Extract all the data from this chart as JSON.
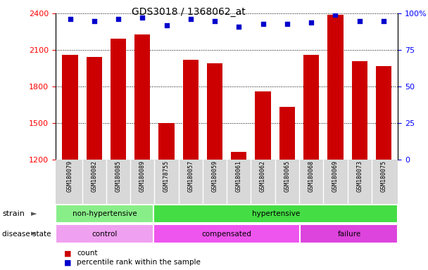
{
  "title": "GDS3018 / 1368062_at",
  "samples": [
    "GSM180079",
    "GSM180082",
    "GSM180085",
    "GSM180089",
    "GSM178755",
    "GSM180057",
    "GSM180059",
    "GSM180061",
    "GSM180062",
    "GSM180065",
    "GSM180068",
    "GSM180069",
    "GSM180073",
    "GSM180075"
  ],
  "counts": [
    2060,
    2040,
    2190,
    2230,
    1500,
    2020,
    1990,
    1260,
    1760,
    1630,
    2060,
    2390,
    2010,
    1970
  ],
  "percentiles": [
    96,
    95,
    96,
    97,
    92,
    96,
    95,
    91,
    93,
    93,
    94,
    99,
    95,
    95
  ],
  "ylim_left": [
    1200,
    2400
  ],
  "yticks_left": [
    1200,
    1500,
    1800,
    2100,
    2400
  ],
  "yticks_right": [
    0,
    25,
    50,
    75,
    100
  ],
  "bar_color": "#cc0000",
  "dot_color": "#0000cc",
  "strain_groups": [
    {
      "text": "non-hypertensive",
      "start": 0,
      "end": 3,
      "color": "#88ee88"
    },
    {
      "text": "hypertensive",
      "start": 4,
      "end": 13,
      "color": "#44dd44"
    }
  ],
  "disease_groups": [
    {
      "text": "control",
      "start": 0,
      "end": 3,
      "color": "#f0a0f0"
    },
    {
      "text": "compensated",
      "start": 4,
      "end": 9,
      "color": "#ee55ee"
    },
    {
      "text": "failure",
      "start": 10,
      "end": 13,
      "color": "#dd44dd"
    }
  ]
}
